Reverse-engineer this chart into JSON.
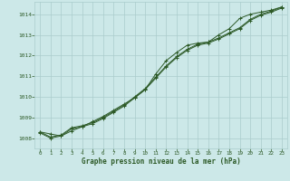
{
  "xlabel": "Graphe pression niveau de la mer (hPa)",
  "background_color": "#cce8e8",
  "grid_color": "#aacccc",
  "line_color": "#2d5a27",
  "xlim": [
    -0.5,
    23.5
  ],
  "ylim": [
    1007.5,
    1014.6
  ],
  "yticks": [
    1008,
    1009,
    1010,
    1011,
    1012,
    1013,
    1014
  ],
  "xticks": [
    0,
    1,
    2,
    3,
    4,
    5,
    6,
    7,
    8,
    9,
    10,
    11,
    12,
    13,
    14,
    15,
    16,
    17,
    18,
    19,
    20,
    21,
    22,
    23
  ],
  "series": [
    [
      1008.3,
      1008.2,
      1008.1,
      1008.35,
      1008.55,
      1008.8,
      1009.05,
      1009.35,
      1009.65,
      1009.95,
      1010.35,
      1011.1,
      1011.75,
      1012.15,
      1012.5,
      1012.6,
      1012.65,
      1013.0,
      1013.3,
      1013.8,
      1014.0,
      1014.1,
      1014.2,
      1014.35
    ],
    [
      1008.3,
      1008.05,
      1008.15,
      1008.5,
      1008.6,
      1008.75,
      1009.0,
      1009.3,
      1009.6,
      1010.0,
      1010.4,
      1010.95,
      1011.5,
      1011.95,
      1012.3,
      1012.55,
      1012.65,
      1012.85,
      1013.1,
      1013.35,
      1013.75,
      1014.0,
      1014.15,
      1014.35
    ],
    [
      1008.25,
      1008.0,
      1008.1,
      1008.45,
      1008.55,
      1008.7,
      1008.95,
      1009.25,
      1009.55,
      1009.95,
      1010.35,
      1010.9,
      1011.45,
      1011.9,
      1012.25,
      1012.5,
      1012.6,
      1012.8,
      1013.05,
      1013.3,
      1013.7,
      1013.95,
      1014.1,
      1014.3
    ]
  ]
}
